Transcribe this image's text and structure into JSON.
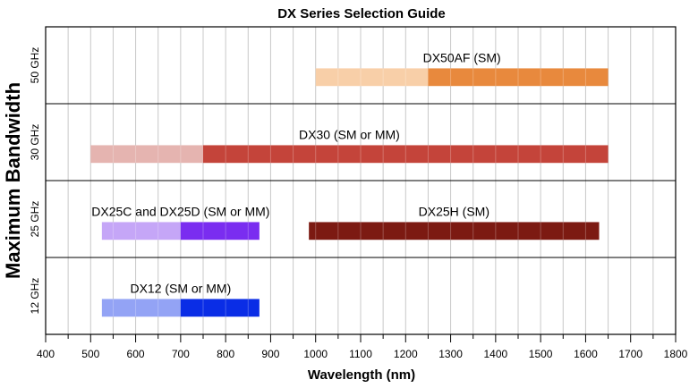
{
  "chart_data": {
    "type": "bar",
    "orientation": "horizontal-range",
    "title": "DX Series Selection Guide",
    "xlabel": "Wavelength (nm)",
    "ylabel": "Maximum Bandwidth",
    "xlim": [
      400,
      1800
    ],
    "major_ticks": [
      400,
      500,
      600,
      700,
      800,
      900,
      1000,
      1100,
      1200,
      1300,
      1400,
      1500,
      1600,
      1700,
      1800
    ],
    "minor_step": 50,
    "grid": true,
    "rows": [
      "50 GHz",
      "30 GHz",
      "25 GHz",
      "12 GHz"
    ],
    "series": [
      {
        "name": "DX50AF (SM)",
        "row": 0,
        "segments": [
          {
            "start": 1000,
            "end": 1250,
            "color": "#f8cfa8"
          },
          {
            "start": 1250,
            "end": 1650,
            "color": "#e8893d"
          }
        ]
      },
      {
        "name": "DX30 (SM or MM)",
        "row": 1,
        "segments": [
          {
            "start": 500,
            "end": 750,
            "color": "#e5b4b0"
          },
          {
            "start": 750,
            "end": 1650,
            "color": "#c4443a"
          }
        ]
      },
      {
        "name": "DX25C and DX25D (SM or MM)",
        "row": 2,
        "segments": [
          {
            "start": 525,
            "end": 700,
            "color": "#c5a6f7"
          },
          {
            "start": 700,
            "end": 875,
            "color": "#7a2df0"
          }
        ]
      },
      {
        "name": "DX25H (SM)",
        "row": 2,
        "segments": [
          {
            "start": 985,
            "end": 1630,
            "color": "#7c1a12"
          }
        ]
      },
      {
        "name": "DX12 (SM or MM)",
        "row": 3,
        "segments": [
          {
            "start": 525,
            "end": 700,
            "color": "#93a3f5"
          },
          {
            "start": 700,
            "end": 875,
            "color": "#0a2de6"
          }
        ]
      }
    ]
  }
}
